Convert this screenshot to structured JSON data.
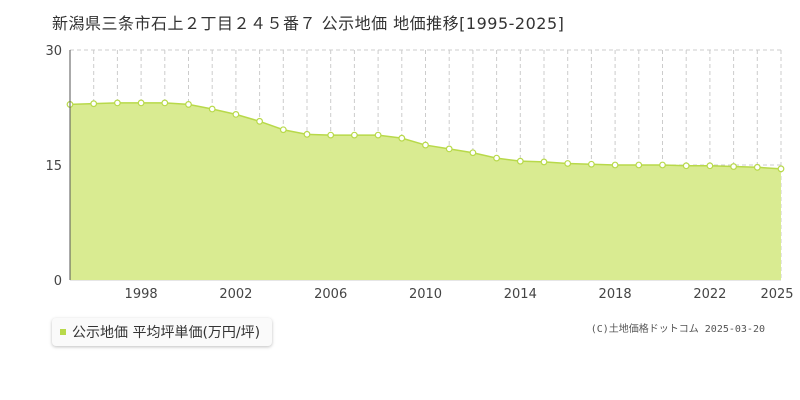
{
  "title": "新潟県三条市石上２丁目２４５番７ 公示地価 地価推移[1995-2025]",
  "legend": {
    "label": "公示地価 平均坪単価(万円/坪)",
    "color": "#b8d94a"
  },
  "credit": "(C)土地価格ドットコム 2025-03-20",
  "chart_data": {
    "type": "area",
    "title": "新潟県三条市石上２丁目２４５番７ 公示地価 地価推移[1995-2025]",
    "xlabel": "",
    "ylabel": "",
    "xlim": [
      1995,
      2025
    ],
    "ylim": [
      0,
      30
    ],
    "yticks": [
      0,
      15,
      30
    ],
    "xticks": [
      1998,
      2002,
      2006,
      2010,
      2014,
      2018,
      2022,
      2025
    ],
    "grid": true,
    "fill_color": "#d9eb91",
    "line_color": "#b8d94a",
    "series": [
      {
        "name": "公示地価 平均坪単価(万円/坪)",
        "x": [
          1995,
          1996,
          1997,
          1998,
          1999,
          2000,
          2001,
          2002,
          2003,
          2004,
          2005,
          2006,
          2007,
          2008,
          2009,
          2010,
          2011,
          2012,
          2013,
          2014,
          2015,
          2016,
          2017,
          2018,
          2019,
          2020,
          2021,
          2022,
          2023,
          2024,
          2025
        ],
        "values": [
          22.9,
          23.0,
          23.1,
          23.1,
          23.1,
          22.9,
          22.3,
          21.6,
          20.7,
          19.6,
          19.0,
          18.9,
          18.9,
          18.9,
          18.5,
          17.6,
          17.1,
          16.6,
          15.9,
          15.5,
          15.4,
          15.2,
          15.1,
          15.0,
          15.0,
          15.0,
          14.9,
          14.9,
          14.8,
          14.7,
          14.5
        ]
      }
    ]
  }
}
